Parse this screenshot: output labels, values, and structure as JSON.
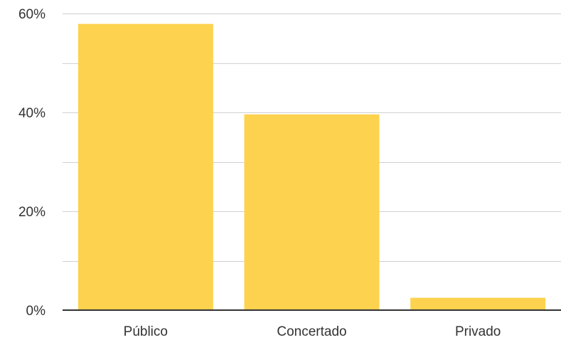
{
  "chart_data": {
    "type": "bar",
    "categories": [
      "Público",
      "Concertado",
      "Privado"
    ],
    "values": [
      57.9,
      39.6,
      2.5
    ],
    "y_unit": "%",
    "ylim": [
      0,
      60
    ],
    "y_ticks": [
      0,
      20,
      40,
      60
    ],
    "y_tick_labels": [
      "0%",
      "20%",
      "40%",
      "60%"
    ],
    "minor_gridlines": [
      10,
      30,
      50
    ],
    "grid": true,
    "legend": "none",
    "title": "",
    "xlabel": "",
    "ylabel": "",
    "colors": {
      "bar": "#FDD24F",
      "grid": "#D0D0D0",
      "axis": "#333333",
      "text": "#333333"
    }
  }
}
